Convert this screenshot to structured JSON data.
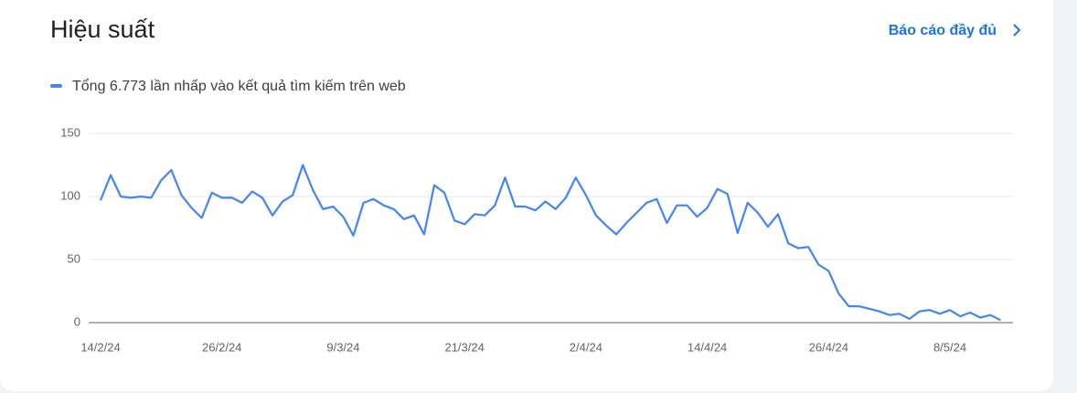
{
  "header": {
    "title": "Hiệu suất",
    "link": "Báo cáo đầy đủ"
  },
  "chart_data": {
    "type": "line",
    "categories": [
      "14/2/24",
      null,
      null,
      null,
      null,
      null,
      null,
      null,
      null,
      null,
      null,
      null,
      "26/2/24",
      null,
      null,
      null,
      null,
      null,
      null,
      null,
      null,
      null,
      null,
      null,
      "9/3/24",
      null,
      null,
      null,
      null,
      null,
      null,
      null,
      null,
      null,
      null,
      null,
      "21/3/24",
      null,
      null,
      null,
      null,
      null,
      null,
      null,
      null,
      null,
      null,
      null,
      "2/4/24",
      null,
      null,
      null,
      null,
      null,
      null,
      null,
      null,
      null,
      null,
      null,
      "14/4/24",
      null,
      null,
      null,
      null,
      null,
      null,
      null,
      null,
      null,
      null,
      null,
      "26/4/24",
      null,
      null,
      null,
      null,
      null,
      null,
      null,
      null,
      null,
      null,
      null,
      "8/5/24",
      null,
      null,
      null,
      null,
      null
    ],
    "series": [
      {
        "name": "Tổng 6.773 lần nhấp vào kết quả tìm kiếm trên web",
        "color": "#4285f4",
        "values": [
          97,
          117,
          100,
          99,
          100,
          99,
          113,
          121,
          101,
          91,
          83,
          103,
          99,
          99,
          95,
          104,
          99,
          85,
          96,
          101,
          125,
          105,
          90,
          92,
          84,
          69,
          95,
          98,
          93,
          90,
          82,
          85,
          70,
          109,
          103,
          81,
          78,
          86,
          85,
          93,
          115,
          92,
          92,
          89,
          96,
          90,
          99,
          115,
          101,
          85,
          77,
          70,
          79,
          87,
          95,
          98,
          79,
          93,
          93,
          84,
          91,
          106,
          102,
          71,
          95,
          87,
          76,
          86,
          63,
          59,
          60,
          46,
          41,
          23,
          13,
          13,
          11,
          9,
          6,
          7,
          3,
          9,
          10,
          7,
          10,
          5,
          8,
          4,
          6,
          2
        ]
      }
    ],
    "ylim": [
      0,
      150
    ],
    "yticks": [
      0,
      50,
      100,
      150
    ],
    "grid": true
  }
}
